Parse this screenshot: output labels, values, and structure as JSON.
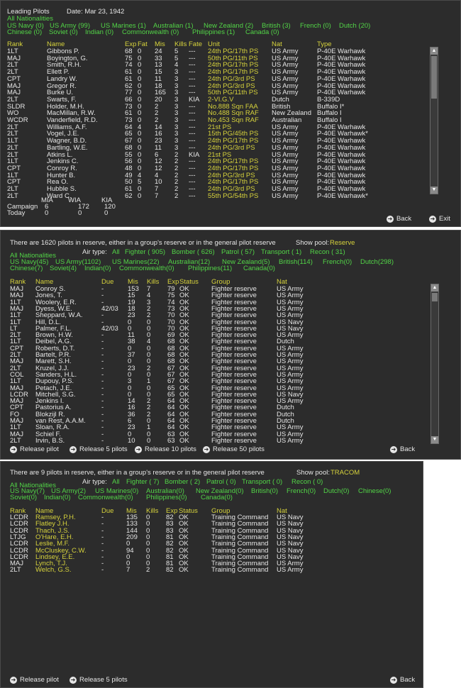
{
  "panel1": {
    "title": "Leading Pilots",
    "date": "Date: Mar 23, 1942",
    "nationalities_all": "All Nationalities",
    "filters_row1": [
      "US Navy (0)",
      "US Army (99)",
      "US Marines (1)",
      "Australian (1)",
      "New Zealand (2)",
      "British (3)",
      "French (0)",
      "Dutch (20)"
    ],
    "filters_row2": [
      "Chinese (0)",
      "Soviet (0)",
      "Indian (0)",
      "Commonwealth (0)",
      "Philippines (1)",
      "Canada (0)"
    ],
    "columns": [
      "Rank",
      "Name",
      "Exp",
      "Fat",
      "Mis",
      "Kills",
      "Fate",
      "Unit",
      "Nat",
      "Type"
    ],
    "rows": [
      [
        "1LT",
        "Gibbons P.",
        "68",
        "0",
        "24",
        "5",
        "---",
        "24th PG/17th PS",
        "US Army",
        "P-40E Warhawk"
      ],
      [
        "MAJ",
        "Boyington, G.",
        "75",
        "0",
        "33",
        "5",
        "---",
        "50th PG/11th PS",
        "US Army",
        "P-40E Warhawk"
      ],
      [
        "2LT",
        "Smith, R.H.",
        "74",
        "0",
        "13",
        "4",
        "---",
        "24th PG/17th PS",
        "US Army",
        "P-40E Warhawk"
      ],
      [
        "2LT",
        "Ellett P.",
        "61",
        "0",
        "15",
        "3",
        "---",
        "24th PG/17th PS",
        "US Army",
        "P-40E Warhawk"
      ],
      [
        "CPT",
        "Landry W.",
        "61",
        "0",
        "11",
        "3",
        "---",
        "24th PG/3rd PS",
        "US Army",
        "P-40E Warhawk"
      ],
      [
        "MAJ",
        "Gregor R.",
        "62",
        "0",
        "18",
        "3",
        "---",
        "24th PG/3rd PS",
        "US Army",
        "P-40E Warhawk"
      ],
      [
        "MAJ",
        "Burke U.",
        "77",
        "0",
        "165",
        "3",
        "---",
        "50th PG/11th PS",
        "US Army",
        "P-40E Warhawk"
      ],
      [
        "2LT",
        "Swarts, F.",
        "66",
        "0",
        "20",
        "3",
        "KIA",
        "2-VI.G.V",
        "Dutch",
        "B-339D"
      ],
      [
        "SLDR",
        "Holder, M.H.",
        "73",
        "0",
        "2",
        "3",
        "---",
        "No.888 Sqn FAA",
        "British",
        "Buffalo I*"
      ],
      [
        "WO",
        "MacMillan, R.W.",
        "61",
        "0",
        "2",
        "3",
        "---",
        "No.488 Sqn RAF",
        "New Zealand",
        "Buffalo I"
      ],
      [
        "WCDR",
        "Vanderfield, R.D.",
        "73",
        "0",
        "2",
        "3",
        "---",
        "No.453 Sqn RAF",
        "Australian",
        "Buffalo I"
      ],
      [
        "2LT",
        "Williams, A.F.",
        "64",
        "4",
        "14",
        "3",
        "---",
        "21st PS",
        "US Army",
        "P-40E Warhawk"
      ],
      [
        "2LT",
        "Vogel, J.E.",
        "65",
        "0",
        "16",
        "3",
        "---",
        "15th PG/45th PS",
        "US Army",
        "P-40E Warhawk*"
      ],
      [
        "1LT",
        "Wagner, B.D.",
        "67",
        "0",
        "23",
        "3",
        "---",
        "24th PG/17th PS",
        "US Army",
        "P-40E Warhawk"
      ],
      [
        "2LT",
        "Bartling, W.E.",
        "68",
        "0",
        "11",
        "3",
        "---",
        "24th PG/3rd PS",
        "US Army",
        "P-40E Warhawk"
      ],
      [
        "2LT",
        "Atkins L.",
        "55",
        "0",
        "6",
        "2",
        "KIA",
        "21st PS",
        "US Army",
        "P-40E Warhawk"
      ],
      [
        "1LT",
        "Jenkins C.",
        "56",
        "0",
        "12",
        "2",
        "---",
        "24th PG/17th PS",
        "US Army",
        "P-40E Warhawk"
      ],
      [
        "CPT",
        "Conroy R.",
        "48",
        "0",
        "12",
        "2",
        "---",
        "24th PG/17th PS",
        "US Army",
        "P-40E Warhawk"
      ],
      [
        "1LT",
        "Hunter B.",
        "49",
        "4",
        "4",
        "2",
        "---",
        "24th PG/3rd PS",
        "US Army",
        "P-40E Warhawk"
      ],
      [
        "CPT",
        "Rea O.",
        "50",
        "5",
        "10",
        "2",
        "---",
        "24th PG/17th PS",
        "US Army",
        "P-40E Warhawk"
      ],
      [
        "2LT",
        "Hubble S.",
        "61",
        "0",
        "7",
        "2",
        "---",
        "24th PG/3rd PS",
        "US Army",
        "P-40E Warhawk"
      ],
      [
        "2LT",
        "Ward C.",
        "62",
        "0",
        "7",
        "2",
        "---",
        "55th PG/54th PS",
        "US Army",
        "P-40E Warhawk*"
      ]
    ],
    "stats": {
      "headers": [
        "MIA",
        "WIA",
        "KIA"
      ],
      "campaign_label": "Campaign",
      "campaign": [
        "6",
        "172",
        "120"
      ],
      "today_label": "Today",
      "today": [
        "0",
        "0",
        "0"
      ]
    },
    "buttons": {
      "back": "Back",
      "exit": "Exit"
    }
  },
  "panel2": {
    "info": "There are 1620 pilots in reserve, either in a group's reserve or in the general pilot reserve",
    "show_pool_label": "Show pool:",
    "show_pool_value": "Reserve",
    "nationalities_all": "All Nationalities",
    "air_type_label": "Air type:",
    "air_types": [
      "All",
      "Fighter ( 905)",
      "Bomber ( 626)",
      "Patrol ( 57)",
      "Transport ( 1)",
      "Recon ( 31)"
    ],
    "filters_row1": [
      "US Navy(45)",
      "US Army(1102)",
      "US Marines(22)",
      "Australian(12)",
      "New Zealand(5)",
      "British(114)",
      "French(0)",
      "Dutch(298)"
    ],
    "filters_row2": [
      "Chinese(7)",
      "Soviet(4)",
      "Indian(0)",
      "Commonwealth(0)",
      "Philippines(11)",
      "Canada(0)"
    ],
    "columns": [
      "Rank",
      "Name",
      "Due",
      "Mis",
      "Kills",
      "Exp",
      "Status",
      "Group",
      "Nat"
    ],
    "rows": [
      [
        "MAJ",
        "Conroy S.",
        "-",
        "153",
        "7",
        "79",
        "OK",
        "Fighter reserve",
        "US Army"
      ],
      [
        "MAJ",
        "Jones, T.",
        "-",
        "15",
        "4",
        "75",
        "OK",
        "Fighter reserve",
        "US Army"
      ],
      [
        "1LT",
        "Woolery, E.R.",
        "-",
        "19",
        "3",
        "74",
        "OK",
        "Fighter reserve",
        "US Army"
      ],
      [
        "MAJ",
        "Dyess, W.E.",
        "42/03",
        "18",
        "2",
        "73",
        "OK",
        "Fighter reserve",
        "US Army"
      ],
      [
        "1LT",
        "Sheppard, W.A.",
        "-",
        "23",
        "2",
        "70",
        "OK",
        "Fighter reserve",
        "US Army"
      ],
      [
        "1LT",
        "Hill, D.L.",
        "-",
        "0",
        "0",
        "70",
        "OK",
        "Fighter reserve",
        "US Navy"
      ],
      [
        "LT",
        "Palmer, F.L.",
        "42/03",
        "0",
        "0",
        "70",
        "OK",
        "Fighter reserve",
        "US Navy"
      ],
      [
        "2LT",
        "Brown, H.W.",
        "-",
        "11",
        "0",
        "69",
        "OK",
        "Fighter reserve",
        "US Army"
      ],
      [
        "1LT",
        "Deibel, A.G.",
        "-",
        "38",
        "4",
        "68",
        "OK",
        "Fighter reserve",
        "Dutch"
      ],
      [
        "CPT",
        "Roberts, D.T.",
        "-",
        "0",
        "0",
        "68",
        "OK",
        "Fighter reserve",
        "US Army"
      ],
      [
        "2LT",
        "Bartelt, P.R.",
        "-",
        "37",
        "0",
        "68",
        "OK",
        "Fighter reserve",
        "US Army"
      ],
      [
        "MAJ",
        "Marett, S.H.",
        "-",
        "0",
        "0",
        "68",
        "OK",
        "Fighter reserve",
        "US Army"
      ],
      [
        "2LT",
        "Kruzel, J.J.",
        "-",
        "23",
        "2",
        "67",
        "OK",
        "Fighter reserve",
        "US Army"
      ],
      [
        "COL",
        "Sanders, H.L.",
        "-",
        "0",
        "0",
        "67",
        "OK",
        "Fighter reserve",
        "US Army"
      ],
      [
        "1LT",
        "Dupouy, P.S.",
        "-",
        "3",
        "1",
        "67",
        "OK",
        "Fighter reserve",
        "US Army"
      ],
      [
        "MAJ",
        "Petach, J.E.",
        "-",
        "0",
        "0",
        "65",
        "OK",
        "Fighter reserve",
        "US Army"
      ],
      [
        "LCDR",
        "Mitchell, S.G.",
        "-",
        "0",
        "0",
        "65",
        "OK",
        "Fighter reserve",
        "US Navy"
      ],
      [
        "MAJ",
        "Jenkins I.",
        "-",
        "14",
        "2",
        "64",
        "OK",
        "Fighter reserve",
        "US Army"
      ],
      [
        "CPT",
        "Pastorius A.",
        "-",
        "16",
        "2",
        "64",
        "OK",
        "Fighter reserve",
        "Dutch"
      ],
      [
        "FO",
        "Blokzijl R.",
        "-",
        "36",
        "2",
        "64",
        "OK",
        "Fighter reserve",
        "Dutch"
      ],
      [
        "MAJ",
        "van Rest, A.A.M.",
        "-",
        "6",
        "0",
        "64",
        "OK",
        "Fighter reserve",
        "Dutch"
      ],
      [
        "1LT",
        "Sloan, R.A.",
        "-",
        "23",
        "1",
        "64",
        "OK",
        "Fighter reserve",
        "US Army"
      ],
      [
        "MAJ",
        "Schiel F.",
        "-",
        "0",
        "0",
        "63",
        "OK",
        "Fighter reserve",
        "US Army"
      ],
      [
        "2LT",
        "Irvin, B.S.",
        "-",
        "10",
        "0",
        "63",
        "OK",
        "Fighter reserve",
        "US Army"
      ]
    ],
    "buttons": {
      "release_pilot": "Release pilot",
      "release_5": "Release 5 pilots",
      "release_10": "Release 10 pilots",
      "release_50": "Release 50 pilots",
      "back": "Back"
    }
  },
  "panel3": {
    "info": "There are 9 pilots in reserve, either in a group's reserve or in the general pilot reserve",
    "show_pool_label": "Show pool:",
    "show_pool_value": "TRACOM",
    "nationalities_all": "All Nationalities",
    "air_type_label": "Air type:",
    "air_types": [
      "All",
      "Fighter ( 7)",
      "Bomber ( 2)",
      "Patrol ( 0)",
      "Transport ( 0)",
      "Recon ( 0)"
    ],
    "filters_row1": [
      "US Navy(7)",
      "US Army(2)",
      "US Marines(0)",
      "Australian(0)",
      "New Zealand(0)",
      "British(0)",
      "French(0)",
      "Dutch(0)",
      "Chinese(0)"
    ],
    "filters_row2": [
      "Soviet(0)",
      "Indian(0)",
      "Commonwealth(0)",
      "Philippines(0)",
      "Canada(0)"
    ],
    "columns": [
      "Rank",
      "Name",
      "Due",
      "Mis",
      "Kills",
      "Exp",
      "Status",
      "Group",
      "Nat"
    ],
    "rows": [
      [
        "LCDR",
        "Ramsey, P.H.",
        "-",
        "135",
        "0",
        "82",
        "OK",
        "Training Command",
        "US Navy"
      ],
      [
        "LCDR",
        "Flatley J.H.",
        "-",
        "133",
        "0",
        "83",
        "OK",
        "Training Command",
        "US Navy"
      ],
      [
        "LCDR",
        "Thach, J.S.",
        "-",
        "144",
        "0",
        "83",
        "OK",
        "Training Command",
        "US Navy"
      ],
      [
        "LTJG",
        "O'Hare, E.H.",
        "-",
        "209",
        "0",
        "81",
        "OK",
        "Training Command",
        "US Navy"
      ],
      [
        "LCDR",
        "Leslie, M.F.",
        "-",
        "0",
        "0",
        "82",
        "OK",
        "Training Command",
        "US Navy"
      ],
      [
        "LCDR",
        "McCluskey, C.W.",
        "-",
        "94",
        "0",
        "82",
        "OK",
        "Training Command",
        "US Navy"
      ],
      [
        "LCDR",
        "Lindsey, E.E.",
        "-",
        "0",
        "0",
        "81",
        "OK",
        "Training Command",
        "US Navy"
      ],
      [
        "MAJ",
        "Lynch, T.J.",
        "-",
        "0",
        "0",
        "81",
        "OK",
        "Training Command",
        "US Army"
      ],
      [
        "2LT",
        "Welch, G.S.",
        "-",
        "7",
        "2",
        "82",
        "OK",
        "Training Command",
        "US Army"
      ]
    ],
    "buttons": {
      "release_pilot": "Release pilot",
      "release_5": "Release 5 pilots",
      "back": "Back"
    }
  }
}
